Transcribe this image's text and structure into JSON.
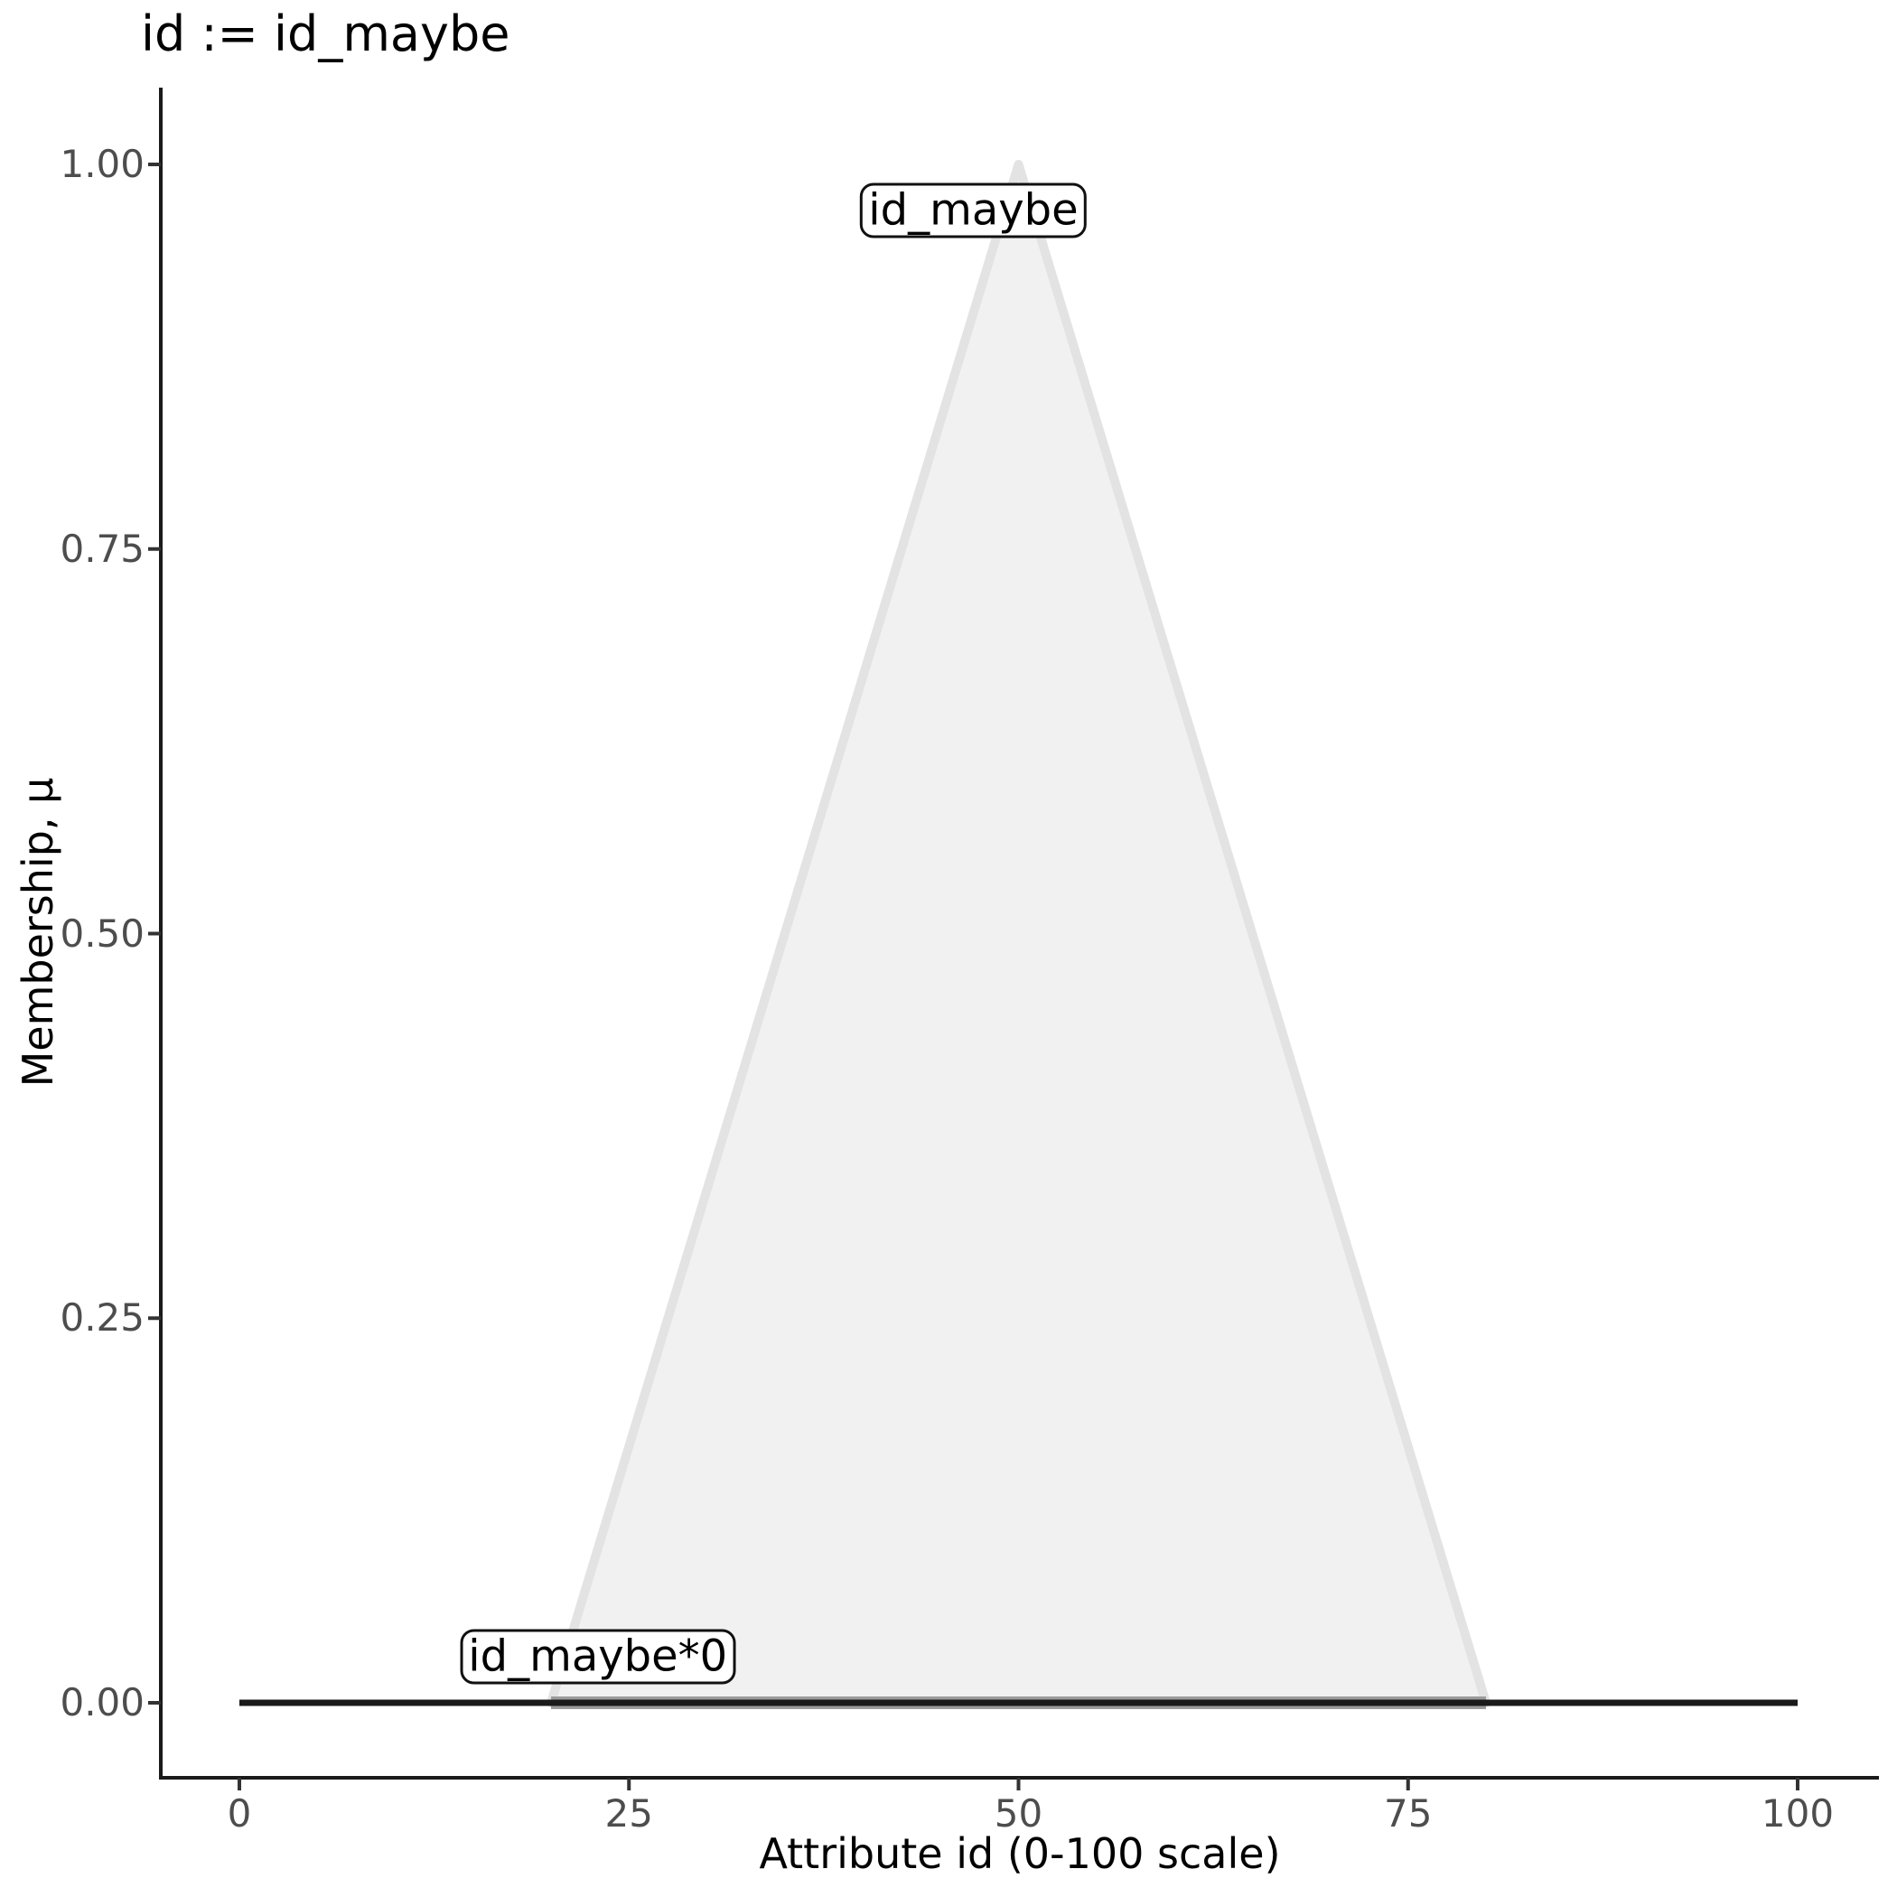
{
  "chart_data": {
    "type": "area",
    "title": "id := id_maybe",
    "xlabel": "Attribute id (0-100 scale)",
    "ylabel": "Membership, μ",
    "xlim": [
      0,
      100
    ],
    "ylim": [
      0.0,
      1.0
    ],
    "x_ticks": [
      0,
      25,
      50,
      75,
      100
    ],
    "x_tick_labels": [
      "0",
      "25",
      "50",
      "75",
      "100"
    ],
    "y_ticks": [
      0.0,
      0.25,
      0.5,
      0.75,
      1.0
    ],
    "y_tick_labels": [
      "0.00",
      "0.25",
      "0.50",
      "0.75",
      "1.00"
    ],
    "grid": false,
    "legend": false,
    "series": [
      {
        "name": "id_maybe",
        "kind": "area",
        "points": [
          [
            20,
            0
          ],
          [
            50,
            1
          ],
          [
            80,
            0
          ]
        ],
        "fill": "#f1f1f1",
        "stroke": "#e3e3e3"
      },
      {
        "name": "id_maybe-support-baseline",
        "kind": "line",
        "points": [
          [
            20,
            0
          ],
          [
            80,
            0
          ]
        ],
        "stroke": "#9b9b9b"
      },
      {
        "name": "id_maybe*0",
        "kind": "line",
        "points": [
          [
            0,
            0
          ],
          [
            100,
            0
          ]
        ],
        "stroke": "#1a1a1a"
      }
    ],
    "annotations": [
      {
        "text": "id_maybe",
        "x": 47.1,
        "y": 0.97
      },
      {
        "text": "id_maybe*0",
        "x": 23.0,
        "y": 0.03
      }
    ],
    "colors": {
      "axis_line": "#1a1a1a",
      "tick_mark": "#333333",
      "tick_label": "#4d4d4d",
      "title_text": "#000000",
      "background": "#ffffff"
    }
  }
}
